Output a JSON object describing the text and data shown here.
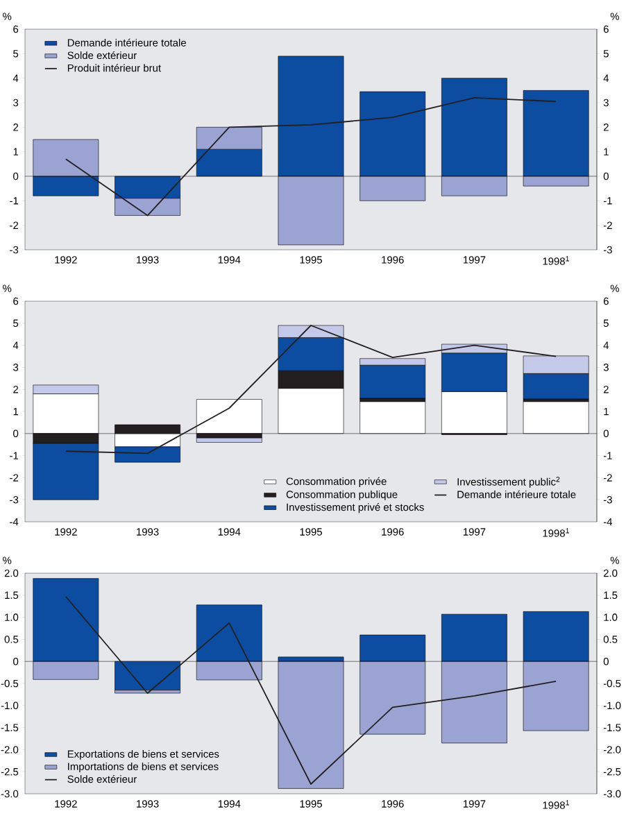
{
  "chart_data": [
    {
      "type": "bar",
      "stacked": true,
      "ylabel": "%",
      "y2label": "%",
      "categories": [
        "1992",
        "1993",
        "1994",
        "1995",
        "1996",
        "1997",
        "1998$^{1}$"
      ],
      "series": [
        {
          "name": "Demande intérieure totale",
          "color": "#0c4da2",
          "values": [
            -0.8,
            -0.9,
            1.1,
            4.9,
            3.45,
            4.0,
            3.5
          ]
        },
        {
          "name": "Solde extérieur",
          "color": "#9aa3d2",
          "values": [
            1.5,
            -0.7,
            0.9,
            -2.8,
            -1.0,
            -0.8,
            -0.4
          ]
        },
        {
          "name": "Produit intérieur brut",
          "type": "line",
          "color": "#231f20",
          "values": [
            0.7,
            -1.6,
            2.0,
            2.1,
            2.4,
            3.2,
            3.05
          ]
        }
      ],
      "ylim": [
        -3,
        6
      ],
      "yticks": [
        -3,
        -2,
        -1,
        0,
        1,
        2,
        3,
        4,
        5,
        6
      ],
      "y2lim": [
        -3,
        6
      ],
      "y2ticks": [
        -3,
        -2,
        -1,
        0,
        1,
        2,
        3,
        4,
        5,
        6
      ],
      "ref_lines": [
        {
          "axis": "y",
          "value": 0,
          "color": "#231f20"
        }
      ],
      "legend": "top left",
      "grid": false,
      "marker": "none",
      "line_style": "solid"
    },
    {
      "type": "bar",
      "stacked": true,
      "ylabel": "%",
      "y2label": "%",
      "categories": [
        "1992",
        "1993",
        "1994",
        "1995",
        "1996",
        "1997",
        "1998$^{1}$"
      ],
      "series": [
        {
          "name": "Consommation privée",
          "color": "#ffffff",
          "values": [
            1.8,
            -0.6,
            1.55,
            2.05,
            1.45,
            1.9,
            1.45
          ]
        },
        {
          "name": "Consommation publique",
          "color": "#231f20",
          "values": [
            -0.45,
            0.4,
            -0.2,
            0.8,
            0.15,
            -0.05,
            0.12
          ]
        },
        {
          "name": "Investissement privé et stocks",
          "color": "#0c4da2",
          "values": [
            -2.55,
            -0.7,
            null,
            1.5,
            1.5,
            1.75,
            1.15
          ]
        },
        {
          "name": "Investissement public$^{2}$",
          "color": "#c5c9e9",
          "values": [
            0.4,
            null,
            -0.2,
            0.55,
            0.3,
            0.4,
            0.8
          ]
        },
        {
          "name": "Demande intérieure totale",
          "type": "line",
          "color": "#231f20",
          "values": [
            -0.8,
            -0.9,
            1.15,
            4.9,
            3.45,
            4.0,
            3.5
          ]
        }
      ],
      "ylim": [
        -4,
        6
      ],
      "yticks": [
        -4,
        -3,
        -2,
        -1,
        0,
        1,
        2,
        3,
        4,
        5,
        6
      ],
      "y2lim": [
        -4,
        6
      ],
      "y2ticks": [
        -4,
        -3,
        -2,
        -1,
        0,
        1,
        2,
        3,
        4,
        5,
        6
      ],
      "ref_lines": [
        {
          "axis": "y",
          "value": 0,
          "color": "#231f20"
        }
      ],
      "legend": "bottom right",
      "grid": false,
      "marker": "none",
      "line_style": "solid"
    },
    {
      "type": "bar",
      "stacked": true,
      "ylabel": "%",
      "y2label": "%",
      "categories": [
        "1992",
        "1993",
        "1994",
        "1995",
        "1996",
        "1997",
        "1998$^{1}$"
      ],
      "series": [
        {
          "name": "Exportations de biens et services",
          "color": "#0c4da2",
          "values": [
            1.88,
            -0.65,
            1.28,
            0.1,
            0.6,
            1.07,
            1.13
          ]
        },
        {
          "name": "Importations de biens et services",
          "color": "#9aa3d2",
          "values": [
            -0.41,
            -0.07,
            -0.42,
            -2.88,
            -1.65,
            -1.85,
            -1.57
          ]
        },
        {
          "name": "Solde extérieur",
          "type": "line",
          "color": "#231f20",
          "values": [
            1.47,
            -0.72,
            0.87,
            -2.78,
            -1.04,
            -0.78,
            -0.45
          ]
        }
      ],
      "ylim": [
        -3,
        2
      ],
      "yticks": [
        {
          "value": -3,
          "label": "-3.0"
        },
        {
          "value": -2.5,
          "label": "-2.5"
        },
        {
          "value": -2,
          "label": "-2.0"
        },
        {
          "value": -1.5,
          "label": "-1.5"
        },
        {
          "value": -1,
          "label": "-1.0"
        },
        {
          "value": -0.5,
          "label": "-0.5"
        },
        0,
        {
          "value": 0.5,
          "label": "0.5"
        },
        {
          "value": 1,
          "label": "1.0"
        },
        {
          "value": 1.5,
          "label": "1.5"
        },
        {
          "value": 2,
          "label": "2.0"
        }
      ],
      "y2lim": [
        -3,
        2
      ],
      "y2ticks": [
        {
          "value": -3,
          "label": "-3.0"
        },
        {
          "value": -2.5,
          "label": "-2.5"
        },
        {
          "value": -2,
          "label": "-2.0"
        },
        {
          "value": -1.5,
          "label": "-1.5"
        },
        {
          "value": -1,
          "label": "-1.0"
        },
        {
          "value": -0.5,
          "label": "-0.5"
        },
        0,
        {
          "value": 0.5,
          "label": "0.5"
        },
        {
          "value": 1,
          "label": "1.0"
        },
        {
          "value": 1.5,
          "label": "1.5"
        },
        {
          "value": 2,
          "label": "2.0"
        }
      ],
      "ref_lines": [
        {
          "axis": "y",
          "value": 0,
          "color": "#231f20"
        }
      ],
      "legend": "bottom left",
      "grid": false,
      "marker": "none",
      "line_style": "solid"
    }
  ]
}
